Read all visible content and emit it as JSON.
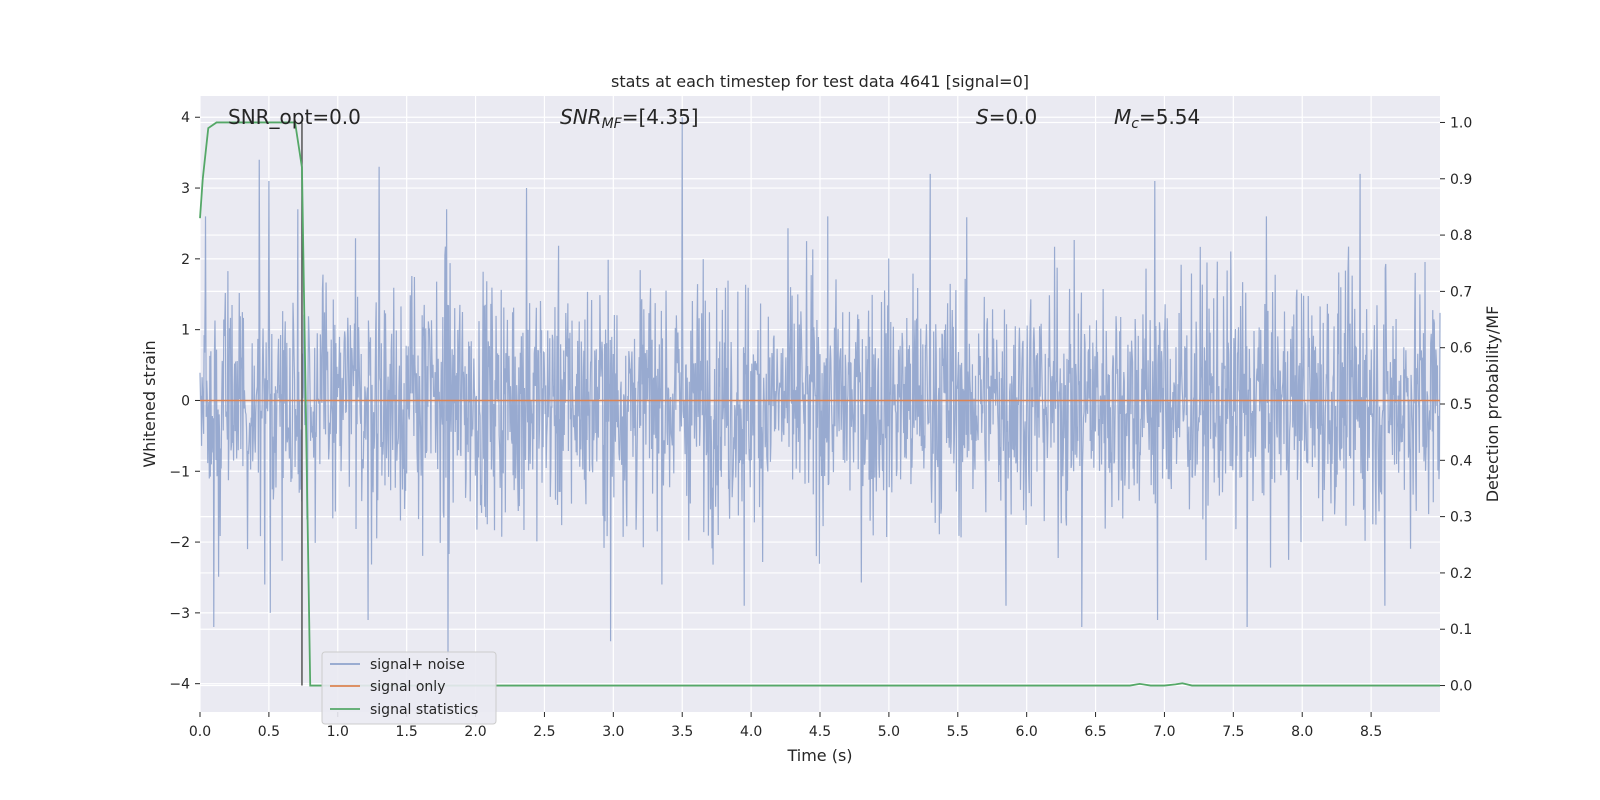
{
  "chart_data": {
    "type": "line",
    "title": "stats at each timestep for test data 4641 [signal=0]",
    "xlabel": "Time (s)",
    "ylabel": "Whitened strain",
    "y2label": "Detection probability/MF",
    "xlim": [
      0.0,
      9.0
    ],
    "ylim": [
      -4.4,
      4.3
    ],
    "y2lim": [
      -0.047,
      1.047
    ],
    "xticks": [
      0.0,
      0.5,
      1.0,
      1.5,
      2.0,
      2.5,
      3.0,
      3.5,
      4.0,
      4.5,
      5.0,
      5.5,
      6.0,
      6.5,
      7.0,
      7.5,
      8.0,
      8.5
    ],
    "xtick_labels": [
      "0.0",
      "0.5",
      "1.0",
      "1.5",
      "2.0",
      "2.5",
      "3.0",
      "3.5",
      "4.0",
      "4.5",
      "5.0",
      "5.5",
      "6.0",
      "6.5",
      "7.0",
      "7.5",
      "8.0",
      "8.5"
    ],
    "yticks": [
      4,
      3,
      2,
      1,
      0,
      -1,
      -2,
      -3,
      -4
    ],
    "ytick_labels": [
      "4",
      "3",
      "2",
      "1",
      "0",
      "−1",
      "−2",
      "−3",
      "−4"
    ],
    "y2ticks": [
      1.0,
      0.9,
      0.8,
      0.7,
      0.6,
      0.5,
      0.4,
      0.3,
      0.2,
      0.1,
      0.0
    ],
    "y2tick_labels": [
      "1.0",
      "0.9",
      "0.8",
      "0.7",
      "0.6",
      "0.5",
      "0.4",
      "0.3",
      "0.2",
      "0.1",
      "0.0"
    ],
    "grid": true,
    "legend_position": "lower-left",
    "annotations": {
      "snr_opt": "SNR_opt=0.0",
      "snr_mf_main": "SNR",
      "snr_mf_sub": "MF",
      "snr_mf_value": "=[4.35]",
      "s_main": "S",
      "s_value": "=0.0",
      "mc_main": "M",
      "mc_sub": "c",
      "mc_value": "=5.54"
    },
    "marker_line_x": 0.74,
    "series": [
      {
        "name": "signal+ noise",
        "axis": "left",
        "color": "#8fa3cc",
        "description_points": "dense noise, roughly within ±2.5 with peaks near 4.0 and −3.6",
        "peaks": [
          {
            "x": 0.04,
            "y": 2.6
          },
          {
            "x": 0.43,
            "y": 3.4
          },
          {
            "x": 0.47,
            "y": -2.6
          },
          {
            "x": 0.5,
            "y": 3.1
          },
          {
            "x": 0.51,
            "y": -3.0
          },
          {
            "x": 0.1,
            "y": -3.2
          },
          {
            "x": 0.71,
            "y": 2.7
          },
          {
            "x": 1.22,
            "y": -3.1
          },
          {
            "x": 1.3,
            "y": 3.3
          },
          {
            "x": 1.8,
            "y": -3.6
          },
          {
            "x": 1.79,
            "y": 2.7
          },
          {
            "x": 2.37,
            "y": 3.0
          },
          {
            "x": 2.98,
            "y": -3.4
          },
          {
            "x": 3.5,
            "y": 4.0
          },
          {
            "x": 3.95,
            "y": -2.9
          },
          {
            "x": 5.3,
            "y": 3.2
          },
          {
            "x": 5.85,
            "y": -2.9
          },
          {
            "x": 6.4,
            "y": -3.2
          },
          {
            "x": 6.93,
            "y": 3.1
          },
          {
            "x": 6.95,
            "y": -3.1
          },
          {
            "x": 7.6,
            "y": -3.2
          },
          {
            "x": 8.42,
            "y": 3.2
          },
          {
            "x": 8.6,
            "y": -2.9
          }
        ]
      },
      {
        "name": "signal only",
        "axis": "left",
        "color": "#dd8452",
        "x": [
          0.0,
          9.0
        ],
        "y": [
          0.0,
          0.0
        ]
      },
      {
        "name": "signal statistics",
        "axis": "right",
        "color": "#55a868",
        "x": [
          0.0,
          0.02,
          0.06,
          0.12,
          0.2,
          0.4,
          0.6,
          0.69,
          0.74,
          0.8,
          1.0,
          2.0,
          3.0,
          4.0,
          5.0,
          6.0,
          6.6,
          6.75,
          6.82,
          6.9,
          7.0,
          7.08,
          7.13,
          7.2,
          7.5,
          8.0,
          9.0
        ],
        "y": [
          0.83,
          0.9,
          0.99,
          1.0,
          1.0,
          1.0,
          1.0,
          1.0,
          0.92,
          0.0,
          0.0,
          0.0,
          0.0,
          0.0,
          0.0,
          0.0,
          0.0,
          0.0,
          0.003,
          0.0,
          0.0,
          0.002,
          0.004,
          0.0,
          0.0,
          0.0,
          0.0
        ]
      }
    ]
  }
}
